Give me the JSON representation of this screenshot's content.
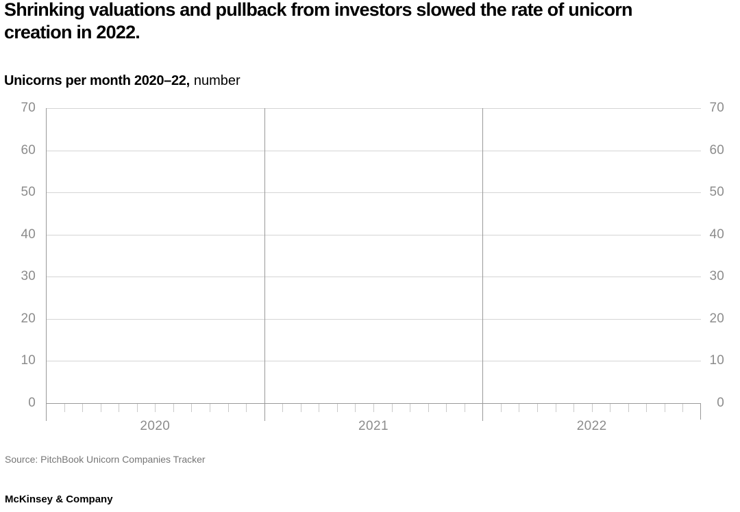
{
  "headline": {
    "line1": "Shrinking valuations and pullback from investors slowed the rate of unicorn",
    "line2": "creation in 2022."
  },
  "chart_data": {
    "type": "bar",
    "title": "Unicorns per month 2020–22,",
    "unit_label": "number",
    "x_axis": {
      "groups": [
        "2020",
        "2021",
        "2022"
      ],
      "minor_ticks_per_group": 12,
      "minor_tick_meaning": "months"
    },
    "y_axis": {
      "min": 0,
      "max": 70,
      "tick_interval": 10,
      "ticks": [
        0,
        10,
        20,
        30,
        40,
        50,
        60,
        70
      ],
      "labels_on_both_sides": true
    },
    "grid": "horizontal gridlines at each tick; vertical separator lines at year boundaries",
    "legend": "none",
    "series": [],
    "note": "Axes, gridlines and tick marks are rendered but no data series is plotted in the image."
  },
  "footer": {
    "source": "Source: PitchBook Unicorn Companies Tracker",
    "brand": "McKinsey & Company"
  },
  "colors": {
    "text": "#000000",
    "axis_label": "#8c8c8c",
    "gridline": "#d4d4d4",
    "axis_line": "#999999",
    "month_tick": "#c9c9c9",
    "source_text": "#757575",
    "background": "#ffffff"
  }
}
